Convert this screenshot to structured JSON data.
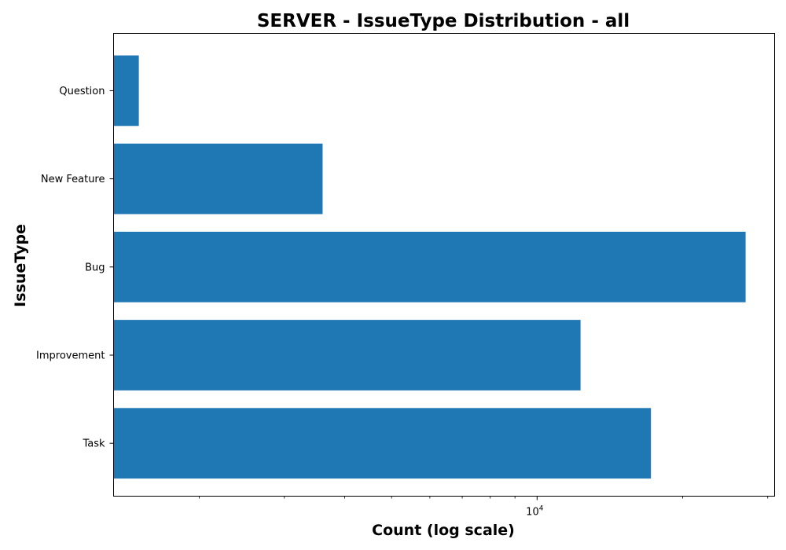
{
  "chart_data": {
    "type": "bar",
    "orientation": "horizontal",
    "title": "SERVER - IssueType Distribution - all",
    "xlabel": "Count (log scale)",
    "ylabel": "IssueType",
    "x_scale": "log",
    "xlim": [
      1330,
      31000
    ],
    "x_ticks": [
      {
        "value": 10000,
        "base": "10",
        "exponent": "4"
      }
    ],
    "categories": [
      "Question",
      "New Feature",
      "Bug",
      "Improvement",
      "Task"
    ],
    "values": [
      1500,
      3600,
      27000,
      12300,
      17200
    ],
    "bar_color": "#1f77b4",
    "grid": false,
    "legend": "none"
  }
}
